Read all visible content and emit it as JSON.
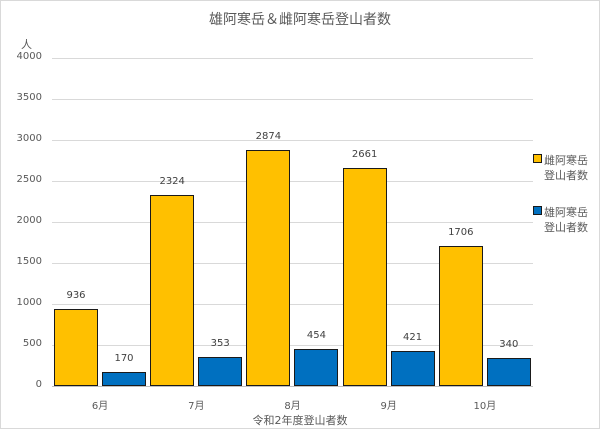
{
  "chart_data": {
    "type": "bar",
    "title": "雄阿寒岳＆雌阿寒岳登山者数",
    "xlabel": "令和2年度登山者数",
    "ylabel": "人",
    "ylim": [
      0,
      4000
    ],
    "yticks": [
      0,
      500,
      1000,
      1500,
      2000,
      2500,
      3000,
      3500,
      4000
    ],
    "grid": true,
    "legend_position": "right",
    "categories": [
      "6月",
      "7月",
      "8月",
      "9月",
      "10月"
    ],
    "series": [
      {
        "name": "雌阿寒岳登山者数",
        "color": "#ffc000",
        "values": [
          936,
          2324,
          2874,
          2661,
          1706
        ]
      },
      {
        "name": "雄阿寒岳登山者数",
        "color": "#0070c0",
        "values": [
          170,
          353,
          454,
          421,
          340
        ]
      }
    ]
  },
  "legend": {
    "items": [
      {
        "line1": "雌阿寒岳",
        "line2": "登山者数",
        "color": "#ffc000"
      },
      {
        "line1": "雄阿寒岳",
        "line2": "登山者数",
        "color": "#0070c0"
      }
    ]
  }
}
